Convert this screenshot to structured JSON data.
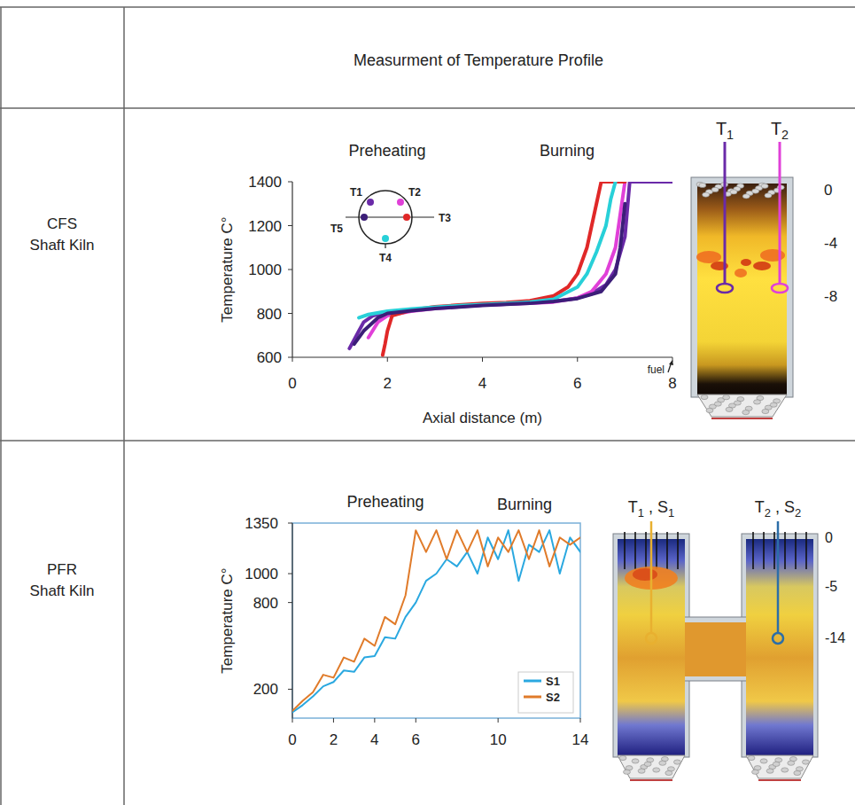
{
  "table": {
    "header": "Measurment of Temperature Profile",
    "row_labels": [
      [
        "CFS",
        "Shaft Kiln"
      ],
      [
        "PFR",
        "Shaft Kiln"
      ]
    ]
  },
  "chart_data": [
    {
      "type": "line",
      "annotations": [
        "Preheating",
        "Burning",
        "fuel"
      ],
      "x_label": "Axial distance (m)",
      "y_label": "Temperature C°",
      "xlim": [
        0,
        8
      ],
      "xticks": [
        0,
        2,
        4,
        6,
        8
      ],
      "ylim": [
        600,
        1400
      ],
      "yticks": [
        600,
        800,
        1000,
        1200,
        1400
      ],
      "grid": false,
      "legend": "upper left",
      "line_style": "solid",
      "series": [
        {
          "name": "T1",
          "color": "#6a2aa8",
          "x": [
            1.2,
            1.3,
            1.4,
            1.5,
            1.7,
            2,
            2.5,
            3,
            3.5,
            4,
            4.5,
            5,
            5.5,
            6,
            6.3,
            6.6,
            6.8,
            7.0,
            7.1,
            7.5,
            8
          ],
          "values": [
            640,
            680,
            720,
            760,
            790,
            805,
            815,
            825,
            832,
            838,
            842,
            848,
            855,
            870,
            890,
            930,
            1000,
            1150,
            1400,
            1400,
            1400
          ]
        },
        {
          "name": "T2",
          "color": "#e040d8",
          "x": [
            1.6,
            1.8,
            2,
            2.5,
            3,
            3.5,
            4,
            4.5,
            5,
            5.5,
            6,
            6.3,
            6.6,
            6.8,
            6.9,
            7.0
          ],
          "values": [
            690,
            760,
            790,
            810,
            822,
            830,
            838,
            842,
            846,
            852,
            870,
            900,
            980,
            1100,
            1250,
            1400
          ]
        },
        {
          "name": "T3",
          "color": "#e02828",
          "x": [
            1.9,
            1.95,
            2.0,
            2.1,
            2.5,
            3,
            3.5,
            4,
            4.5,
            5,
            5.5,
            5.8,
            6.0,
            6.2,
            6.4,
            6.5,
            6.6,
            7.0
          ],
          "values": [
            610,
            660,
            720,
            790,
            815,
            830,
            838,
            845,
            850,
            858,
            880,
            920,
            980,
            1100,
            1300,
            1400,
            1400,
            1400
          ]
        },
        {
          "name": "T4",
          "color": "#28d0d8",
          "x": [
            1.4,
            1.6,
            2,
            2.5,
            3,
            3.5,
            4,
            4.5,
            5,
            5.5,
            6,
            6.2,
            6.4,
            6.6,
            6.7,
            6.8
          ],
          "values": [
            780,
            795,
            810,
            820,
            828,
            835,
            840,
            845,
            852,
            865,
            920,
            980,
            1080,
            1200,
            1320,
            1400
          ]
        },
        {
          "name": "T5",
          "color": "#3c1e78",
          "x": [
            1.3,
            1.5,
            1.8,
            2,
            2.5,
            3,
            4,
            5,
            5.5,
            6,
            6.5,
            6.8,
            6.9,
            7.0
          ],
          "values": [
            660,
            720,
            780,
            800,
            812,
            822,
            836,
            846,
            855,
            868,
            900,
            980,
            1100,
            1300
          ]
        }
      ]
    },
    {
      "type": "line",
      "annotations": [
        "Preheating",
        "Burning"
      ],
      "y_label": "Temperature C°",
      "xlim": [
        0,
        14
      ],
      "xticks": [
        0,
        2,
        4,
        6,
        10,
        14
      ],
      "ylim": [
        0,
        1350
      ],
      "yticks": [
        200,
        800,
        1000,
        1350
      ],
      "grid": false,
      "legend": "lower right",
      "line_style": "solid",
      "series": [
        {
          "name": "S1",
          "color": "#2aa8e0",
          "x": [
            0,
            0.5,
            1,
            1.5,
            2,
            2.5,
            3,
            3.5,
            4,
            4.5,
            5,
            5.5,
            6,
            6.5,
            7,
            7.5,
            8,
            8.5,
            9,
            9.5,
            10,
            10.5,
            11,
            11.5,
            12,
            12.5,
            13,
            13.5,
            14
          ],
          "values": [
            40,
            90,
            150,
            220,
            250,
            330,
            320,
            420,
            430,
            560,
            550,
            700,
            800,
            950,
            1000,
            1100,
            1050,
            1150,
            1000,
            1250,
            1100,
            1300,
            950,
            1200,
            1150,
            1300,
            1000,
            1250,
            1150
          ]
        },
        {
          "name": "S2",
          "color": "#e07b2a",
          "x": [
            0,
            0.5,
            1,
            1.5,
            2,
            2.5,
            3,
            3.5,
            4,
            4.5,
            5,
            5.5,
            6,
            6.5,
            7,
            7.5,
            8,
            8.5,
            9,
            9.5,
            10,
            10.5,
            11,
            11.5,
            12,
            12.5,
            13,
            13.5,
            14
          ],
          "values": [
            50,
            120,
            180,
            300,
            280,
            420,
            390,
            550,
            500,
            700,
            650,
            850,
            1300,
            1150,
            1300,
            1100,
            1300,
            1150,
            1300,
            1050,
            1250,
            1150,
            1300,
            1100,
            1300,
            1050,
            1250,
            1200,
            1250
          ]
        }
      ]
    }
  ],
  "diagrams": [
    {
      "probes": [
        "T1",
        "T2"
      ],
      "depths": [
        0,
        -4,
        -8
      ]
    },
    {
      "probes": [
        "T1 , S1",
        "T2 , S2"
      ],
      "depths": [
        0,
        -5,
        -14
      ]
    }
  ]
}
